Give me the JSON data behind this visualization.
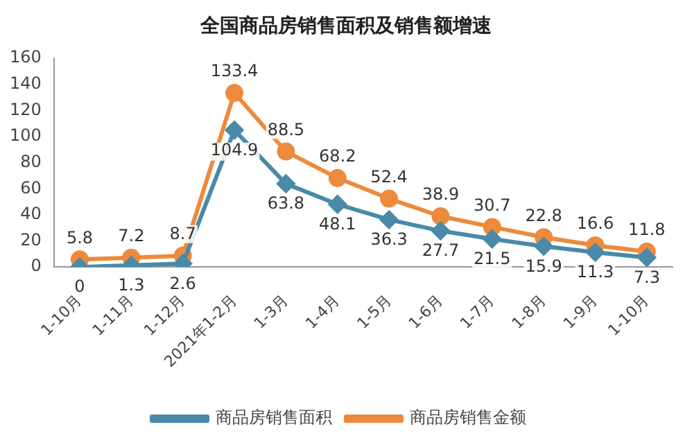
{
  "chart_data": {
    "type": "line",
    "title": "全国商品房销售面积及销售额增速",
    "categories": [
      "1-10月",
      "1-11月",
      "1-12月",
      "2021年1-2月",
      "1-3月",
      "1-4月",
      "1-5月",
      "1-6月",
      "1-7月",
      "1-8月",
      "1-9月",
      "1-10月"
    ],
    "series": [
      {
        "name": "商品房销售面积",
        "color": "#4a8aa8",
        "marker": "diamond",
        "values": [
          0,
          1.3,
          2.6,
          104.9,
          63.8,
          48.1,
          36.3,
          27.7,
          21.5,
          15.9,
          11.3,
          7.3
        ]
      },
      {
        "name": "商品房销售金额",
        "color": "#ee8a3c",
        "marker": "circle",
        "values": [
          5.8,
          7.2,
          8.7,
          133.4,
          88.5,
          68.2,
          52.4,
          38.9,
          30.7,
          22.8,
          16.6,
          11.8
        ]
      }
    ],
    "ylim": [
      0,
      160
    ],
    "yticks": [
      0,
      20,
      40,
      60,
      80,
      100,
      120,
      140,
      160
    ],
    "grid": false,
    "legend": "bottom",
    "data_labels": true,
    "line_style": "solid"
  }
}
